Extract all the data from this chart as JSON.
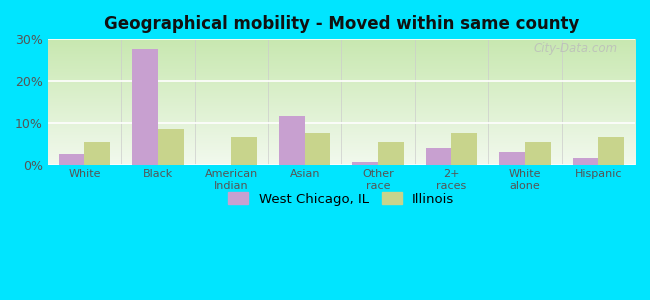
{
  "title": "Geographical mobility - Moved within same county",
  "categories": [
    "White",
    "Black",
    "American\nIndian",
    "Asian",
    "Other\nrace",
    "2+\nraces",
    "White\nalone",
    "Hispanic"
  ],
  "west_chicago": [
    2.5,
    27.5,
    0.0,
    11.5,
    0.5,
    4.0,
    3.0,
    1.5
  ],
  "illinois": [
    5.5,
    8.5,
    6.5,
    7.5,
    5.5,
    7.5,
    5.5,
    6.5
  ],
  "west_chicago_color": "#c8a0d0",
  "illinois_color": "#c8d48c",
  "ylim": [
    0,
    30
  ],
  "yticks": [
    0,
    10,
    20,
    30
  ],
  "ytick_labels": [
    "0%",
    "10%",
    "20%",
    "30%"
  ],
  "legend_labels": [
    "West Chicago, IL",
    "Illinois"
  ],
  "outer_background": "#00e5ff",
  "bar_width": 0.35,
  "watermark": "City-Data.com"
}
